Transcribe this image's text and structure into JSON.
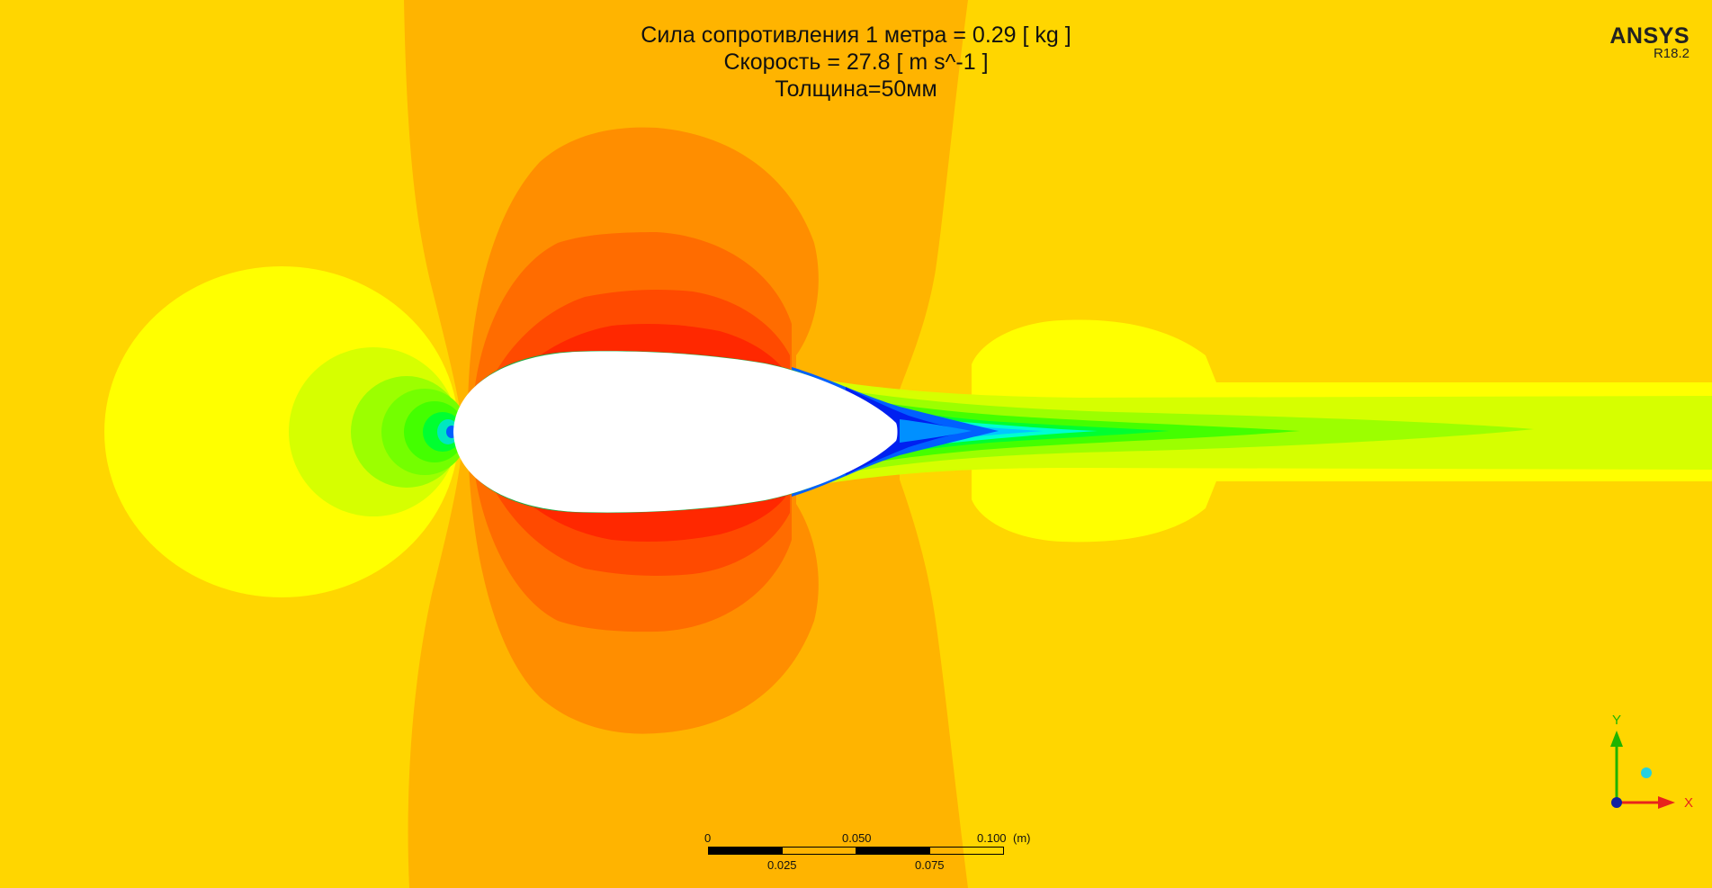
{
  "title": {
    "lines": [
      "Сила сопротивления 1 метра = 0.29 [ kg ]",
      "Скорость = 27.8 [ m s^-1 ]",
      "Толщина=50мм"
    ]
  },
  "logo": {
    "name": "ANSYS",
    "version": "R18.2"
  },
  "scale_bar": {
    "top_labels": [
      "0",
      "0.050",
      "0.100",
      "(m)"
    ],
    "bottom_labels": [
      "0.025",
      "0.075"
    ]
  },
  "axes": {
    "y_label": "Y",
    "x_label": "X",
    "colors": {
      "y": "#1fb400",
      "x": "#e8231c",
      "z_dot": "#25d0e0",
      "origin": "#1020a0"
    }
  },
  "contour_colors": {
    "background": "#ffd600",
    "orange_light": "#ffb400",
    "orange": "#ff8e00",
    "orange_dark": "#ff6c00",
    "red_orange": "#ff4a00",
    "red": "#ff2800",
    "yellow": "#ffff00",
    "yellow_green": "#d6ff00",
    "green_light": "#9cff00",
    "green": "#44ff00",
    "green_bright": "#00ff30",
    "cyan": "#00ffd0",
    "sky": "#00c8ff",
    "blue": "#0060ff",
    "blue_deep": "#0020f0",
    "body": "#ffffff"
  }
}
